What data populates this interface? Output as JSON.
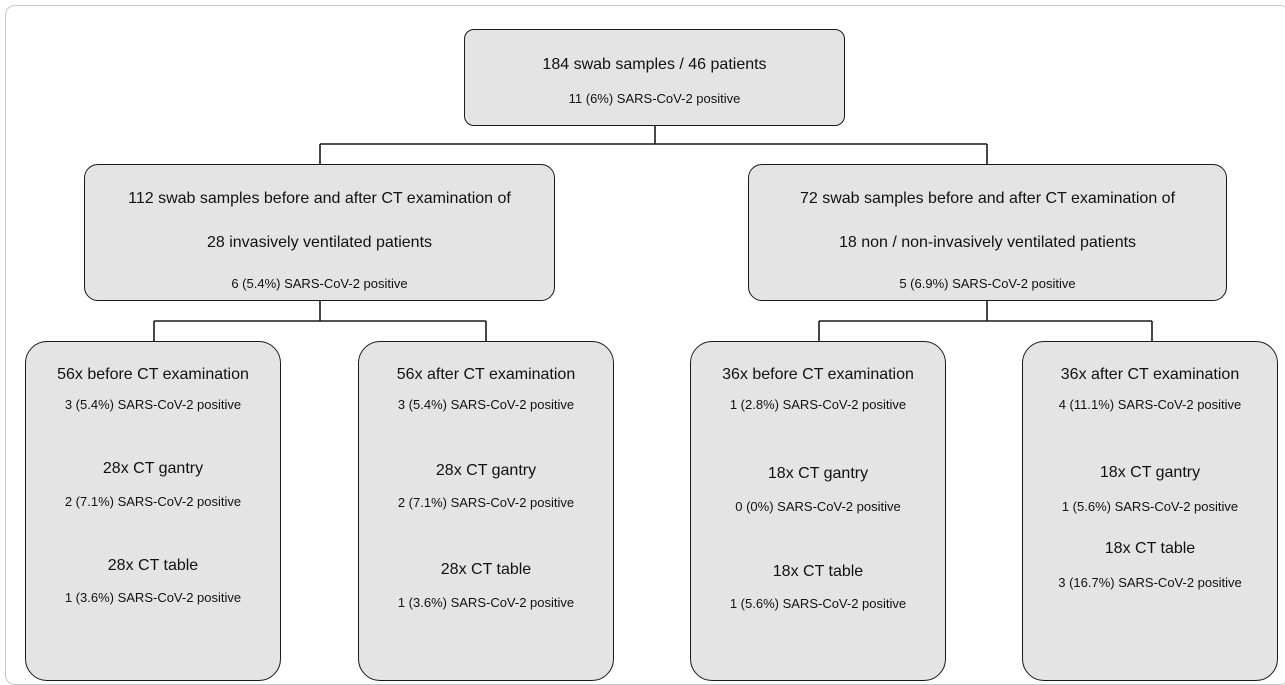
{
  "root": {
    "line1": "184 swab samples / 46 patients",
    "line2": "11 (6%) SARS-CoV-2 positive"
  },
  "left_group": {
    "line1": "112 swab samples before and after CT examination of",
    "line2": "28 invasively ventilated patients",
    "line3": "6 (5.4%) SARS-CoV-2 positive",
    "children": [
      {
        "title": "56x before CT examination",
        "title_stat": "3 (5.4%) SARS-CoV-2 positive",
        "gantry": "28x CT gantry",
        "gantry_stat": "2 (7.1%) SARS-CoV-2 positive",
        "table": "28x CT table",
        "table_stat": "1 (3.6%) SARS-CoV-2 positive"
      },
      {
        "title": "56x after CT examination",
        "title_stat": "3 (5.4%) SARS-CoV-2 positive",
        "gantry": "28x CT gantry",
        "gantry_stat": "2 (7.1%) SARS-CoV-2 positive",
        "table": "28x CT table",
        "table_stat": "1 (3.6%) SARS-CoV-2 positive"
      }
    ]
  },
  "right_group": {
    "line1": "72 swab samples before and after CT examination of",
    "line2": "18 non / non-invasively ventilated patients",
    "line3": "5 (6.9%) SARS-CoV-2 positive",
    "children": [
      {
        "title": "36x before CT examination",
        "title_stat": "1 (2.8%) SARS-CoV-2 positive",
        "gantry": "18x CT gantry",
        "gantry_stat": "0 (0%) SARS-CoV-2 positive",
        "table": "18x CT table",
        "table_stat": "1 (5.6%) SARS-CoV-2 positive"
      },
      {
        "title": "36x after CT examination",
        "title_stat": "4 (11.1%) SARS-CoV-2 positive",
        "gantry": "18x CT gantry",
        "gantry_stat": "1 (5.6%) SARS-CoV-2 positive",
        "table": "18x CT table",
        "table_stat": "3 (16.7%) SARS-CoV-2 positive"
      }
    ]
  },
  "colors": {
    "box_fill": "#e4e4e4",
    "box_border": "#1a1a1a",
    "connector": "#1a1a1a"
  }
}
